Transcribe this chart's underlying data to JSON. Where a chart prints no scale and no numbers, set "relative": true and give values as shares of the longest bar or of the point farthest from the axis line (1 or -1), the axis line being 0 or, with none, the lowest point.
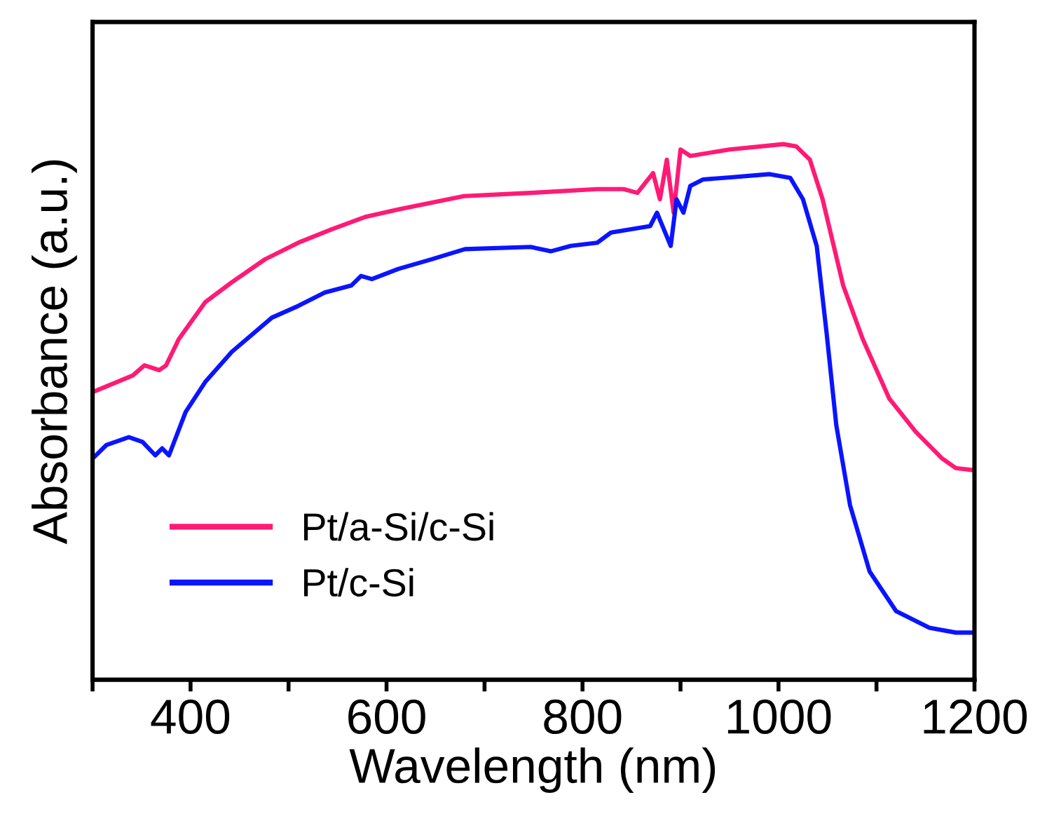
{
  "chart_data": {
    "type": "line",
    "xlabel": "Wavelength (nm)",
    "ylabel": "Absorbance (a.u.)",
    "relative": true,
    "xlim": [
      300,
      1200
    ],
    "xticks": [
      {
        "value": 300,
        "label": null
      },
      400,
      {
        "value": 500,
        "label": null
      },
      600,
      {
        "value": 700,
        "label": null
      },
      800,
      {
        "value": 900,
        "label": null
      },
      1000,
      {
        "value": 1100,
        "label": null
      },
      1200
    ],
    "tick_labels": "x",
    "grid": false,
    "legend": "bottom left",
    "marker": "none",
    "line_style": "solid",
    "series": [
      {
        "name": "Pt/a-Si/c-Si",
        "color": "#ff1a75",
        "x": [
          300,
          341,
          353,
          368,
          375,
          388,
          415,
          442,
          476,
          510,
          544,
          578,
          612,
          679,
          747,
          815,
          842,
          856,
          872,
          879,
          886,
          893,
          900,
          910,
          950,
          1005,
          1018,
          1032,
          1045,
          1066,
          1086,
          1113,
          1140,
          1167,
          1181,
          1200
        ],
        "values": [
          0.537,
          0.568,
          0.587,
          0.578,
          0.587,
          0.636,
          0.705,
          0.742,
          0.785,
          0.816,
          0.841,
          0.864,
          0.878,
          0.903,
          0.909,
          0.916,
          0.916,
          0.909,
          0.946,
          0.897,
          0.971,
          0.872,
          0.99,
          0.978,
          0.99,
          1.0,
          0.996,
          0.971,
          0.897,
          0.736,
          0.636,
          0.525,
          0.463,
          0.413,
          0.395,
          0.391
        ]
      },
      {
        "name": "Pt/c-Si",
        "color": "#0a14ff",
        "x": [
          300,
          314,
          337,
          351,
          364,
          371,
          378,
          395,
          415,
          442,
          483,
          510,
          537,
          564,
          574,
          585,
          612,
          646,
          680,
          747,
          768,
          788,
          815,
          829,
          869,
          876,
          883,
          890,
          896,
          903,
          910,
          923,
          951,
          991,
          1012,
          1025,
          1039,
          1049,
          1059,
          1073,
          1093,
          1120,
          1154,
          1181,
          1200
        ],
        "values": [
          0.413,
          0.438,
          0.453,
          0.444,
          0.419,
          0.432,
          0.419,
          0.5,
          0.556,
          0.612,
          0.676,
          0.698,
          0.723,
          0.736,
          0.754,
          0.748,
          0.767,
          0.785,
          0.804,
          0.808,
          0.8,
          0.81,
          0.816,
          0.835,
          0.847,
          0.872,
          0.841,
          0.81,
          0.897,
          0.872,
          0.922,
          0.934,
          0.938,
          0.944,
          0.937,
          0.897,
          0.81,
          0.649,
          0.475,
          0.326,
          0.202,
          0.128,
          0.097,
          0.088,
          0.088
        ]
      }
    ]
  }
}
